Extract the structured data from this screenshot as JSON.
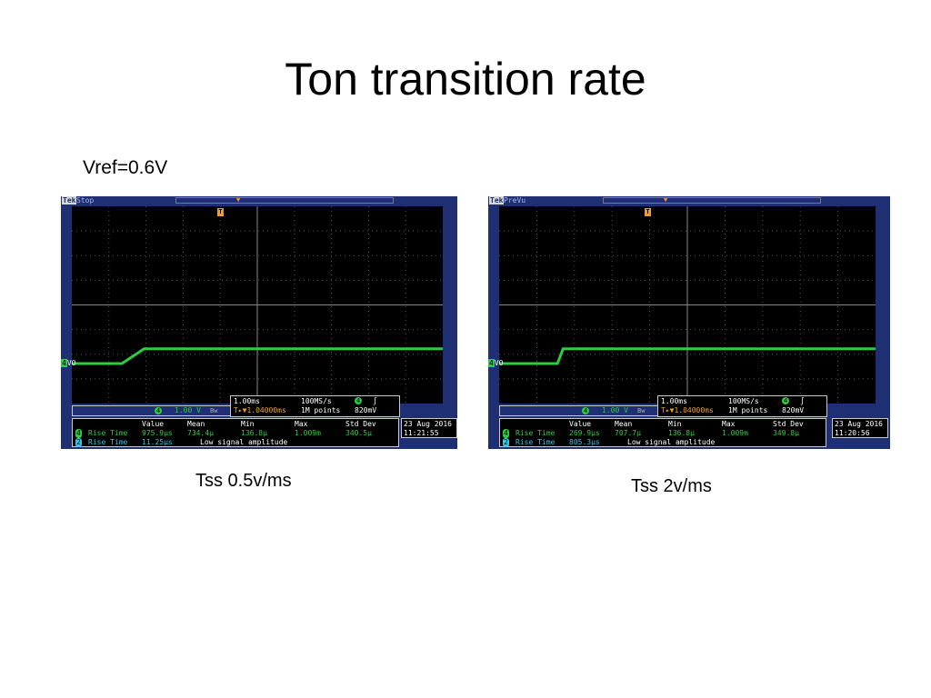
{
  "slide": {
    "title": "Ton transition rate",
    "subtitle": "Vref=0.6V"
  },
  "scopes": [
    {
      "brand": "Tek",
      "mode": "Stop",
      "trigger_marker": "T",
      "channel_num": "4",
      "channel_label": "VO",
      "ch_scale": "1.00 V",
      "ch_bw": "Bw",
      "timebase": "1.00ms",
      "sample_rate": "100MS/s",
      "trigger_pos": "T▸▼1.04000ms",
      "record_length": "1M points",
      "trig_ch": "4",
      "trig_slope": "∫",
      "trig_level": "820mV",
      "meas_headers": [
        "Value",
        "Mean",
        "Min",
        "Max",
        "Std Dev"
      ],
      "meas_rows": [
        {
          "num": "4",
          "name": "Rise Time",
          "values": [
            "975.9µs",
            "734.4µ",
            "136.8µ",
            "1.009m",
            "340.5µ"
          ]
        },
        {
          "num": "2",
          "name": "Rise Time",
          "value": "11.25µs",
          "note": "Low signal amplitude"
        }
      ],
      "date": "23 Aug 2016",
      "time": "11:21:55",
      "caption": "Tss 0.5v/ms",
      "trace_level_low": 0.0,
      "trace_level_high": 0.6,
      "rise_start_ms": 1.35,
      "rise_end_ms": 1.95
    },
    {
      "brand": "Tek",
      "mode": "PreVu",
      "trigger_marker": "T",
      "channel_num": "4",
      "channel_label": "VO",
      "ch_scale": "1.00 V",
      "ch_bw": "Bw",
      "timebase": "1.00ms",
      "sample_rate": "100MS/s",
      "trigger_pos": "T▸▼1.04000ms",
      "record_length": "1M points",
      "trig_ch": "4",
      "trig_slope": "∫",
      "trig_level": "820mV",
      "meas_headers": [
        "Value",
        "Mean",
        "Min",
        "Max",
        "Std Dev"
      ],
      "meas_rows": [
        {
          "num": "4",
          "name": "Rise Time",
          "values": [
            "269.9µs",
            "707.7µ",
            "136.8µ",
            "1.009m",
            "349.8µ"
          ]
        },
        {
          "num": "2",
          "name": "Rise Time",
          "value": "805.3µs",
          "note": "Low signal amplitude"
        }
      ],
      "date": "23 Aug 2016",
      "time": "11:20:56",
      "caption": "Tss 2v/ms",
      "trace_level_low": 0.0,
      "trace_level_high": 0.6,
      "rise_start_ms": 1.55,
      "rise_end_ms": 1.7
    }
  ],
  "colors": {
    "trace": "#2ecc40",
    "bezel": "#1f2f73",
    "trigger": "#f0a020",
    "channel2": "#31c8e8"
  }
}
